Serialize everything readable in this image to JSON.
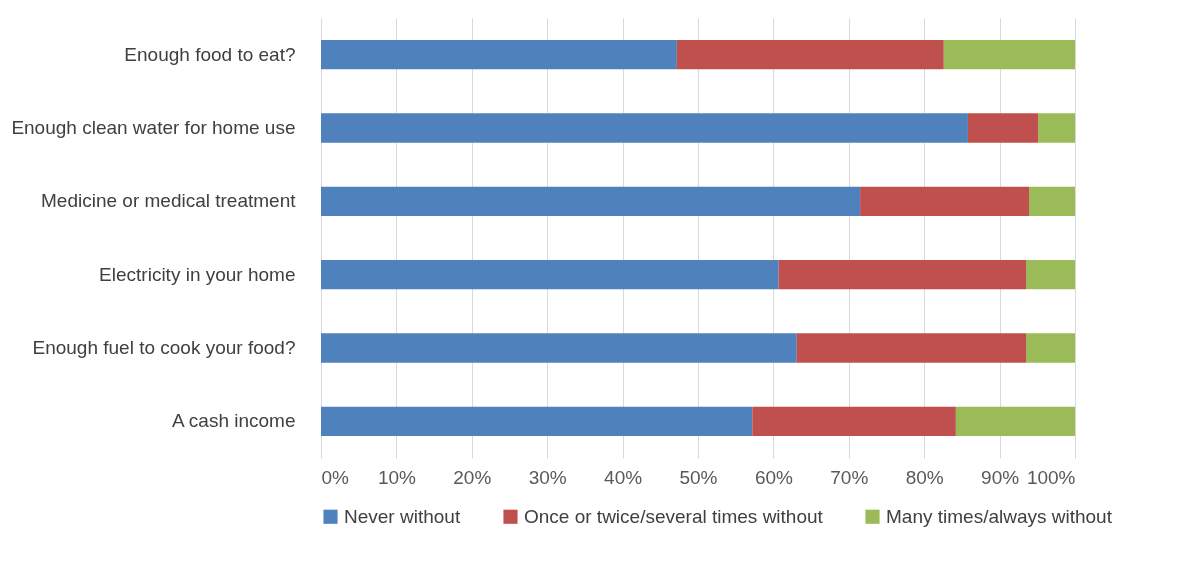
{
  "chart_data": {
    "type": "bar",
    "orientation": "horizontal",
    "stacked": true,
    "categories": [
      "Enough food to eat?",
      "Enough clean water for home use",
      "Medicine or medical treatment",
      "Electricity in your home",
      "Enough fuel to cook your food?",
      "A cash income"
    ],
    "series": [
      {
        "name": "Never without",
        "color": "#4f81bd",
        "values": [
          47.2,
          85.8,
          71.5,
          60.7,
          63.1,
          57.2
        ]
      },
      {
        "name": "Once or twice/several times without",
        "color": "#c0504d",
        "values": [
          35.4,
          9.3,
          22.4,
          32.8,
          30.4,
          27.0
        ]
      },
      {
        "name": "Many times/always without",
        "color": "#9bbb59",
        "values": [
          17.4,
          4.9,
          6.1,
          6.5,
          6.5,
          15.8
        ]
      }
    ],
    "xlim": [
      0,
      100
    ],
    "xticks": [
      {
        "value": 0,
        "label": "0%"
      },
      {
        "value": 10,
        "label": "10%"
      },
      {
        "value": 20,
        "label": "20%"
      },
      {
        "value": 30,
        "label": "30%"
      },
      {
        "value": 40,
        "label": "40%"
      },
      {
        "value": 50,
        "label": "50%"
      },
      {
        "value": 60,
        "label": "60%"
      },
      {
        "value": 70,
        "label": "70%"
      },
      {
        "value": 80,
        "label": "80%"
      },
      {
        "value": 90,
        "label": "90%"
      },
      {
        "value": 100,
        "label": "100%"
      }
    ],
    "grid": "x",
    "legend": "bottom"
  }
}
